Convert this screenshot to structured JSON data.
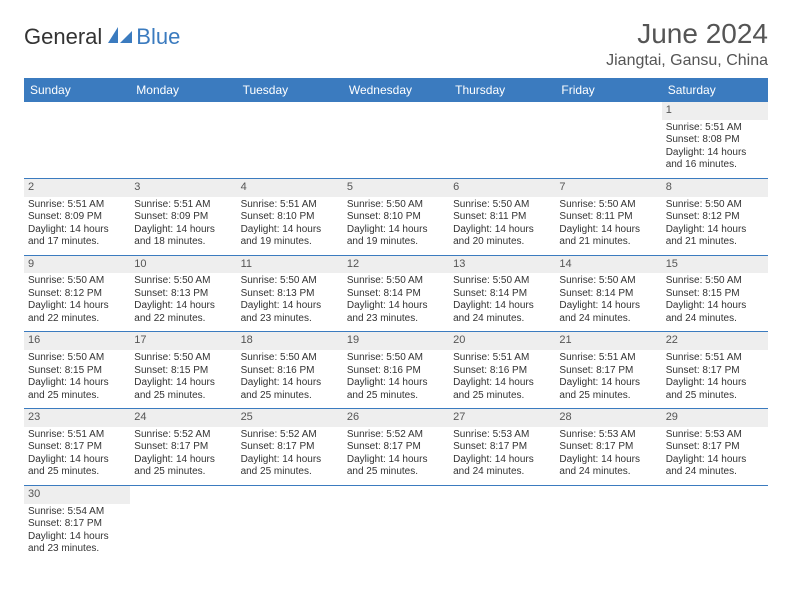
{
  "brand": {
    "text1": "General",
    "text2": "Blue",
    "logo_color": "#3b7bbf",
    "text_color": "#333333"
  },
  "title": "June 2024",
  "location": "Jiangtai, Gansu, China",
  "colors": {
    "header_bg": "#3b7bbf",
    "header_text": "#ffffff",
    "daynum_bg": "#eeeeee",
    "cell_border": "#3b7bbf",
    "body_text": "#333333"
  },
  "weekdays": [
    "Sunday",
    "Monday",
    "Tuesday",
    "Wednesday",
    "Thursday",
    "Friday",
    "Saturday"
  ],
  "weeks": [
    [
      null,
      null,
      null,
      null,
      null,
      null,
      {
        "d": "1",
        "sr": "Sunrise: 5:51 AM",
        "ss": "Sunset: 8:08 PM",
        "dl1": "Daylight: 14 hours",
        "dl2": "and 16 minutes."
      }
    ],
    [
      {
        "d": "2",
        "sr": "Sunrise: 5:51 AM",
        "ss": "Sunset: 8:09 PM",
        "dl1": "Daylight: 14 hours",
        "dl2": "and 17 minutes."
      },
      {
        "d": "3",
        "sr": "Sunrise: 5:51 AM",
        "ss": "Sunset: 8:09 PM",
        "dl1": "Daylight: 14 hours",
        "dl2": "and 18 minutes."
      },
      {
        "d": "4",
        "sr": "Sunrise: 5:51 AM",
        "ss": "Sunset: 8:10 PM",
        "dl1": "Daylight: 14 hours",
        "dl2": "and 19 minutes."
      },
      {
        "d": "5",
        "sr": "Sunrise: 5:50 AM",
        "ss": "Sunset: 8:10 PM",
        "dl1": "Daylight: 14 hours",
        "dl2": "and 19 minutes."
      },
      {
        "d": "6",
        "sr": "Sunrise: 5:50 AM",
        "ss": "Sunset: 8:11 PM",
        "dl1": "Daylight: 14 hours",
        "dl2": "and 20 minutes."
      },
      {
        "d": "7",
        "sr": "Sunrise: 5:50 AM",
        "ss": "Sunset: 8:11 PM",
        "dl1": "Daylight: 14 hours",
        "dl2": "and 21 minutes."
      },
      {
        "d": "8",
        "sr": "Sunrise: 5:50 AM",
        "ss": "Sunset: 8:12 PM",
        "dl1": "Daylight: 14 hours",
        "dl2": "and 21 minutes."
      }
    ],
    [
      {
        "d": "9",
        "sr": "Sunrise: 5:50 AM",
        "ss": "Sunset: 8:12 PM",
        "dl1": "Daylight: 14 hours",
        "dl2": "and 22 minutes."
      },
      {
        "d": "10",
        "sr": "Sunrise: 5:50 AM",
        "ss": "Sunset: 8:13 PM",
        "dl1": "Daylight: 14 hours",
        "dl2": "and 22 minutes."
      },
      {
        "d": "11",
        "sr": "Sunrise: 5:50 AM",
        "ss": "Sunset: 8:13 PM",
        "dl1": "Daylight: 14 hours",
        "dl2": "and 23 minutes."
      },
      {
        "d": "12",
        "sr": "Sunrise: 5:50 AM",
        "ss": "Sunset: 8:14 PM",
        "dl1": "Daylight: 14 hours",
        "dl2": "and 23 minutes."
      },
      {
        "d": "13",
        "sr": "Sunrise: 5:50 AM",
        "ss": "Sunset: 8:14 PM",
        "dl1": "Daylight: 14 hours",
        "dl2": "and 24 minutes."
      },
      {
        "d": "14",
        "sr": "Sunrise: 5:50 AM",
        "ss": "Sunset: 8:14 PM",
        "dl1": "Daylight: 14 hours",
        "dl2": "and 24 minutes."
      },
      {
        "d": "15",
        "sr": "Sunrise: 5:50 AM",
        "ss": "Sunset: 8:15 PM",
        "dl1": "Daylight: 14 hours",
        "dl2": "and 24 minutes."
      }
    ],
    [
      {
        "d": "16",
        "sr": "Sunrise: 5:50 AM",
        "ss": "Sunset: 8:15 PM",
        "dl1": "Daylight: 14 hours",
        "dl2": "and 25 minutes."
      },
      {
        "d": "17",
        "sr": "Sunrise: 5:50 AM",
        "ss": "Sunset: 8:15 PM",
        "dl1": "Daylight: 14 hours",
        "dl2": "and 25 minutes."
      },
      {
        "d": "18",
        "sr": "Sunrise: 5:50 AM",
        "ss": "Sunset: 8:16 PM",
        "dl1": "Daylight: 14 hours",
        "dl2": "and 25 minutes."
      },
      {
        "d": "19",
        "sr": "Sunrise: 5:50 AM",
        "ss": "Sunset: 8:16 PM",
        "dl1": "Daylight: 14 hours",
        "dl2": "and 25 minutes."
      },
      {
        "d": "20",
        "sr": "Sunrise: 5:51 AM",
        "ss": "Sunset: 8:16 PM",
        "dl1": "Daylight: 14 hours",
        "dl2": "and 25 minutes."
      },
      {
        "d": "21",
        "sr": "Sunrise: 5:51 AM",
        "ss": "Sunset: 8:17 PM",
        "dl1": "Daylight: 14 hours",
        "dl2": "and 25 minutes."
      },
      {
        "d": "22",
        "sr": "Sunrise: 5:51 AM",
        "ss": "Sunset: 8:17 PM",
        "dl1": "Daylight: 14 hours",
        "dl2": "and 25 minutes."
      }
    ],
    [
      {
        "d": "23",
        "sr": "Sunrise: 5:51 AM",
        "ss": "Sunset: 8:17 PM",
        "dl1": "Daylight: 14 hours",
        "dl2": "and 25 minutes."
      },
      {
        "d": "24",
        "sr": "Sunrise: 5:52 AM",
        "ss": "Sunset: 8:17 PM",
        "dl1": "Daylight: 14 hours",
        "dl2": "and 25 minutes."
      },
      {
        "d": "25",
        "sr": "Sunrise: 5:52 AM",
        "ss": "Sunset: 8:17 PM",
        "dl1": "Daylight: 14 hours",
        "dl2": "and 25 minutes."
      },
      {
        "d": "26",
        "sr": "Sunrise: 5:52 AM",
        "ss": "Sunset: 8:17 PM",
        "dl1": "Daylight: 14 hours",
        "dl2": "and 25 minutes."
      },
      {
        "d": "27",
        "sr": "Sunrise: 5:53 AM",
        "ss": "Sunset: 8:17 PM",
        "dl1": "Daylight: 14 hours",
        "dl2": "and 24 minutes."
      },
      {
        "d": "28",
        "sr": "Sunrise: 5:53 AM",
        "ss": "Sunset: 8:17 PM",
        "dl1": "Daylight: 14 hours",
        "dl2": "and 24 minutes."
      },
      {
        "d": "29",
        "sr": "Sunrise: 5:53 AM",
        "ss": "Sunset: 8:17 PM",
        "dl1": "Daylight: 14 hours",
        "dl2": "and 24 minutes."
      }
    ],
    [
      {
        "d": "30",
        "sr": "Sunrise: 5:54 AM",
        "ss": "Sunset: 8:17 PM",
        "dl1": "Daylight: 14 hours",
        "dl2": "and 23 minutes."
      },
      null,
      null,
      null,
      null,
      null,
      null
    ]
  ]
}
